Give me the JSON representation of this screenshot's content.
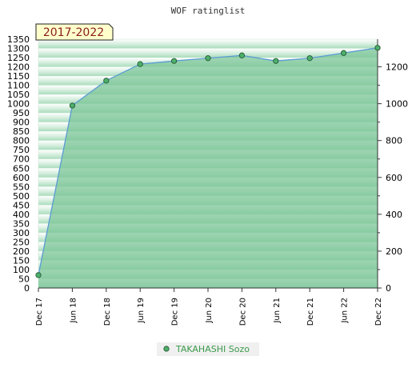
{
  "chart_data": {
    "type": "area",
    "title": "WOF ratinglist",
    "period_label": "2017-2022",
    "categories": [
      "Dec 17",
      "Jun 18",
      "Dec 18",
      "Jun 19",
      "Dec 19",
      "Jun 20",
      "Dec 20",
      "Jun 21",
      "Dec 21",
      "Jun 22",
      "Dec 22"
    ],
    "series": [
      {
        "name": "TAKAHASHI Sozo",
        "values": [
          70,
          990,
          1125,
          1215,
          1232,
          1247,
          1262,
          1232,
          1247,
          1275,
          1303
        ]
      }
    ],
    "ylim": [
      0,
      1350
    ],
    "left_ticks": [
      0,
      50,
      100,
      150,
      200,
      250,
      300,
      350,
      400,
      450,
      500,
      550,
      600,
      650,
      700,
      750,
      800,
      850,
      900,
      950,
      1000,
      1050,
      1100,
      1150,
      1200,
      1250,
      1300,
      1350
    ],
    "right_ticks": [
      0,
      200,
      400,
      600,
      800,
      1000,
      1200
    ],
    "grid": true,
    "legend_position": "bottom-center",
    "colors": {
      "line": "#5b9bd5",
      "area": "#7cc598",
      "marker": "#4caf6a",
      "marker_stroke": "#1f4d2b",
      "legend_text": "#3a9a4a",
      "period_bg": "#ffffcc"
    }
  }
}
